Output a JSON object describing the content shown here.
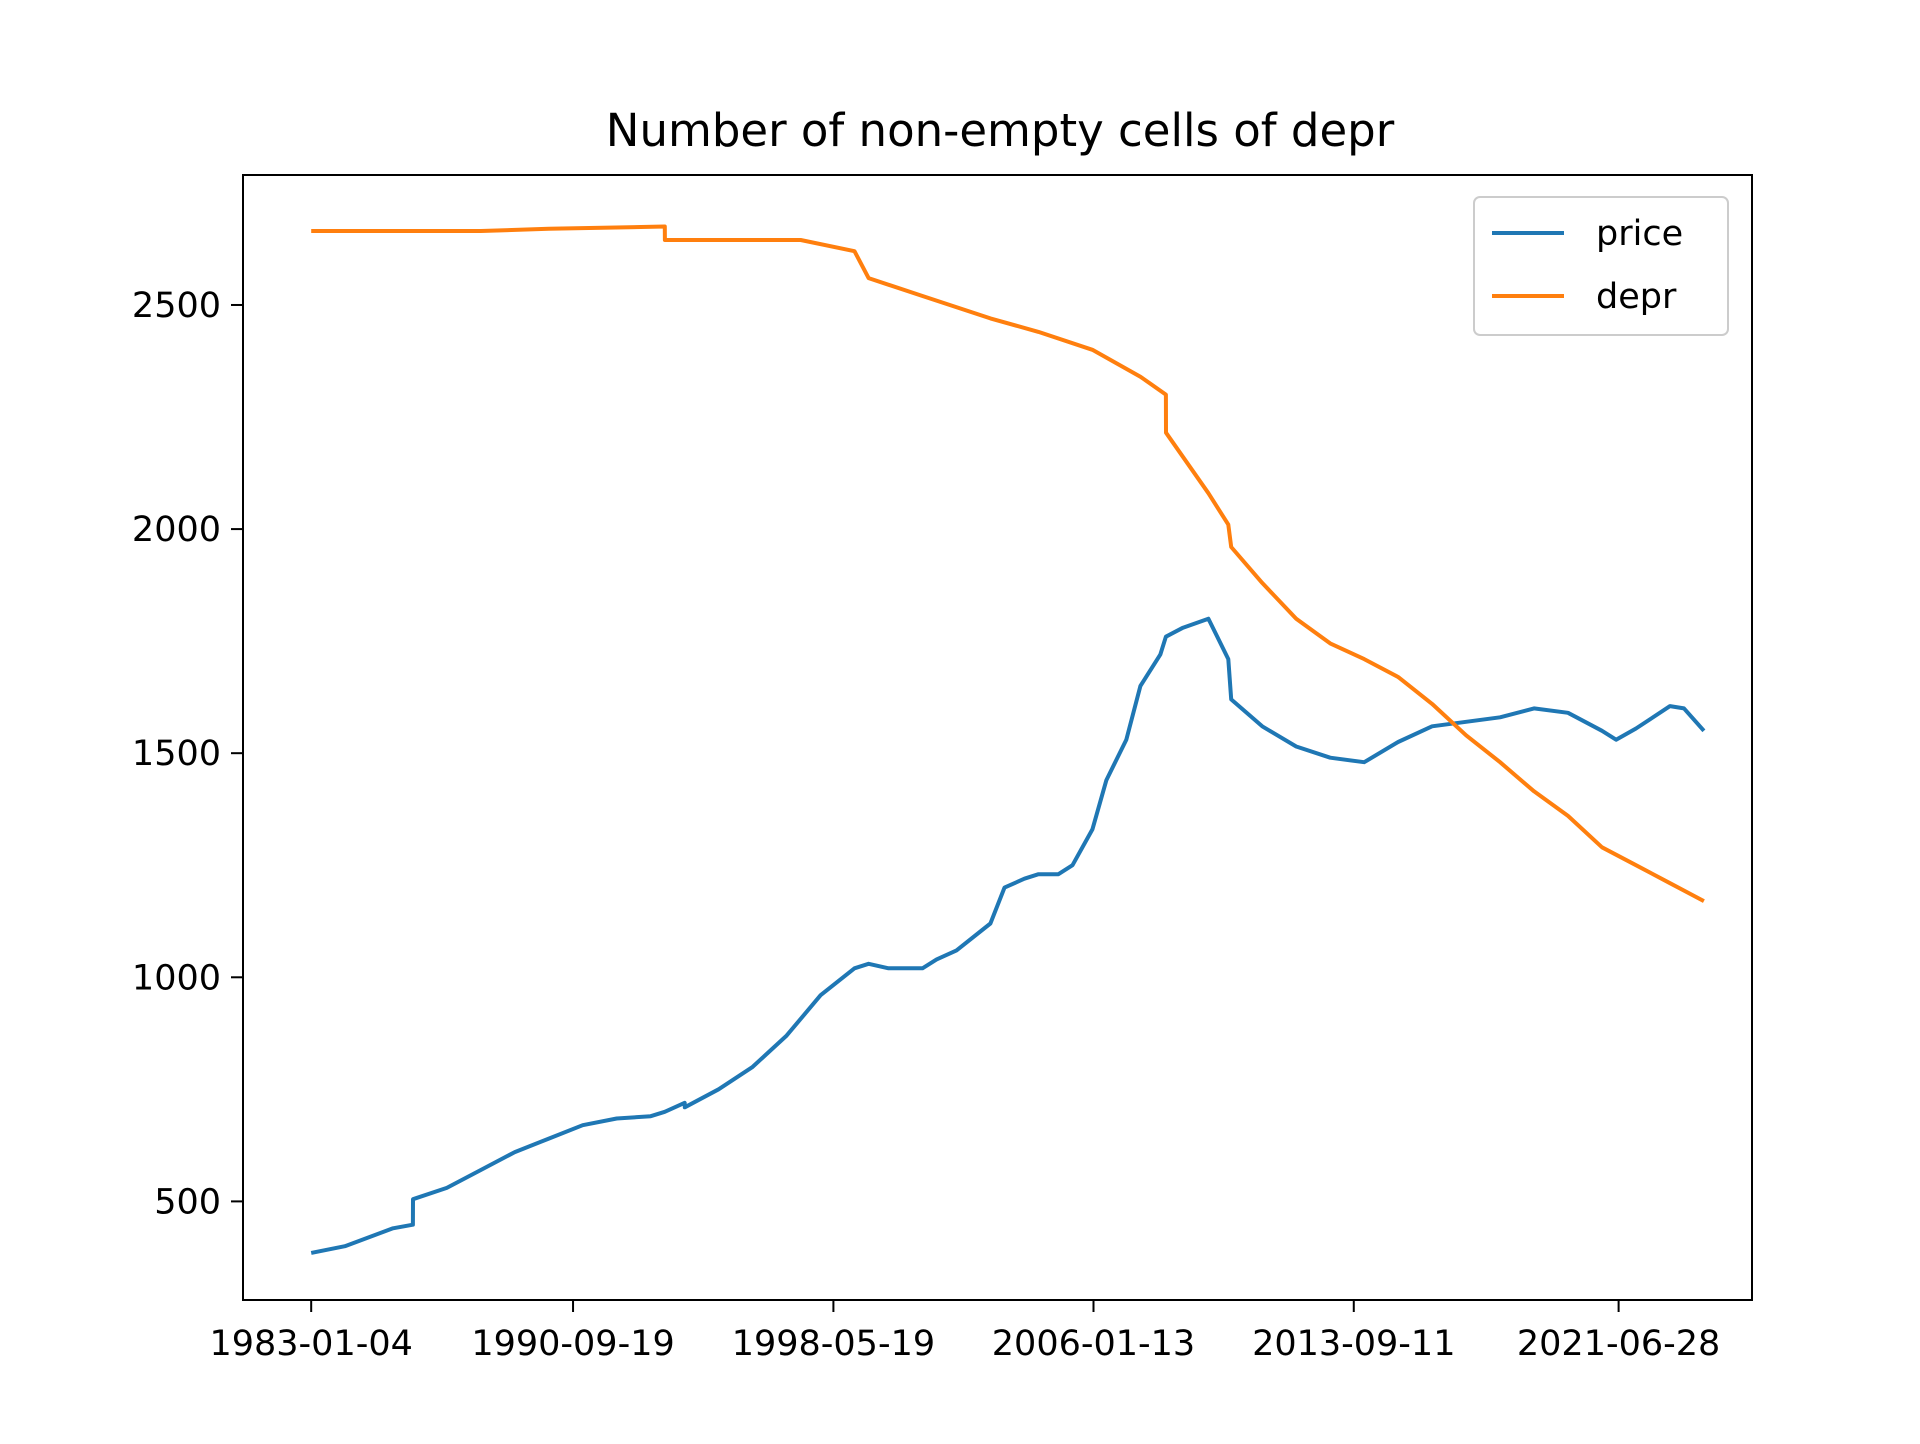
{
  "chart_data": {
    "type": "line",
    "title": "Number of non-empty cells of depr",
    "xlabel": "",
    "ylabel": "",
    "x_tick_labels": [
      "1983-01-04",
      "1990-09-19",
      "1998-05-19",
      "2006-01-13",
      "2013-09-11",
      "2021-06-28"
    ],
    "y_tick_labels": [
      "500",
      "1000",
      "1500",
      "2000",
      "2500"
    ],
    "y_ticks": [
      500,
      1000,
      1500,
      2000,
      2500
    ],
    "xlim": [
      "1981-01-01",
      "2025-06-01"
    ],
    "ylim": [
      280,
      2790
    ],
    "grid": false,
    "legend": "top-right",
    "series": [
      {
        "name": "price",
        "color": "#1f77b4",
        "x": [
          "1983-01-04",
          "1984-01-01",
          "1985-06-01",
          "1986-01-01",
          "1986-01-02",
          "1987-01-01",
          "1988-01-01",
          "1989-01-01",
          "1990-01-01",
          "1991-01-01",
          "1992-01-01",
          "1993-01-01",
          "1993-06-01",
          "1994-01-01",
          "1994-01-02",
          "1995-01-01",
          "1996-01-01",
          "1997-01-01",
          "1998-01-01",
          "1999-01-01",
          "1999-06-01",
          "2000-01-01",
          "2001-01-01",
          "2001-06-01",
          "2002-01-01",
          "2003-01-01",
          "2003-06-01",
          "2004-01-01",
          "2004-06-01",
          "2005-01-01",
          "2005-06-01",
          "2006-01-01",
          "2006-06-01",
          "2007-01-01",
          "2007-06-01",
          "2008-01-01",
          "2008-03-01",
          "2008-09-01",
          "2009-06-01",
          "2010-01-01",
          "2010-02-01",
          "2011-01-01",
          "2012-01-01",
          "2013-01-01",
          "2014-01-01",
          "2015-01-01",
          "2016-01-01",
          "2017-01-01",
          "2018-01-01",
          "2019-01-01",
          "2020-01-01",
          "2021-01-01",
          "2021-06-01",
          "2022-01-01",
          "2023-01-01",
          "2023-06-01",
          "2024-01-01"
        ],
        "values": [
          385,
          400,
          440,
          448,
          505,
          530,
          570,
          610,
          640,
          670,
          685,
          690,
          700,
          720,
          710,
          750,
          800,
          870,
          960,
          1020,
          1030,
          1020,
          1020,
          1040,
          1060,
          1120,
          1200,
          1220,
          1230,
          1230,
          1250,
          1330,
          1440,
          1530,
          1650,
          1720,
          1760,
          1780,
          1800,
          1710,
          1620,
          1560,
          1515,
          1490,
          1480,
          1525,
          1560,
          1570,
          1580,
          1600,
          1590,
          1550,
          1530,
          1555,
          1605,
          1600,
          1550
        ]
      },
      {
        "name": "depr",
        "color": "#ff7f0e",
        "x": [
          "1983-01-04",
          "1988-01-01",
          "1990-01-01",
          "1993-06-01",
          "1993-06-02",
          "1996-01-01",
          "1997-06-01",
          "1999-01-01",
          "1999-06-01",
          "2001-01-01",
          "2003-01-01",
          "2004-06-01",
          "2006-01-01",
          "2007-06-01",
          "2008-03-01",
          "2008-03-02",
          "2009-06-01",
          "2010-01-01",
          "2010-02-01",
          "2011-01-01",
          "2012-01-01",
          "2013-01-01",
          "2014-01-01",
          "2015-01-01",
          "2016-01-01",
          "2017-01-01",
          "2018-01-01",
          "2019-01-01",
          "2020-01-01",
          "2021-01-01",
          "2022-01-01",
          "2023-01-01",
          "2024-01-01"
        ],
        "values": [
          2665,
          2665,
          2670,
          2675,
          2645,
          2645,
          2645,
          2620,
          2560,
          2520,
          2470,
          2440,
          2400,
          2340,
          2300,
          2215,
          2080,
          2010,
          1960,
          1880,
          1800,
          1745,
          1710,
          1670,
          1610,
          1540,
          1480,
          1415,
          1360,
          1290,
          1250,
          1210,
          1170
        ]
      }
    ]
  }
}
